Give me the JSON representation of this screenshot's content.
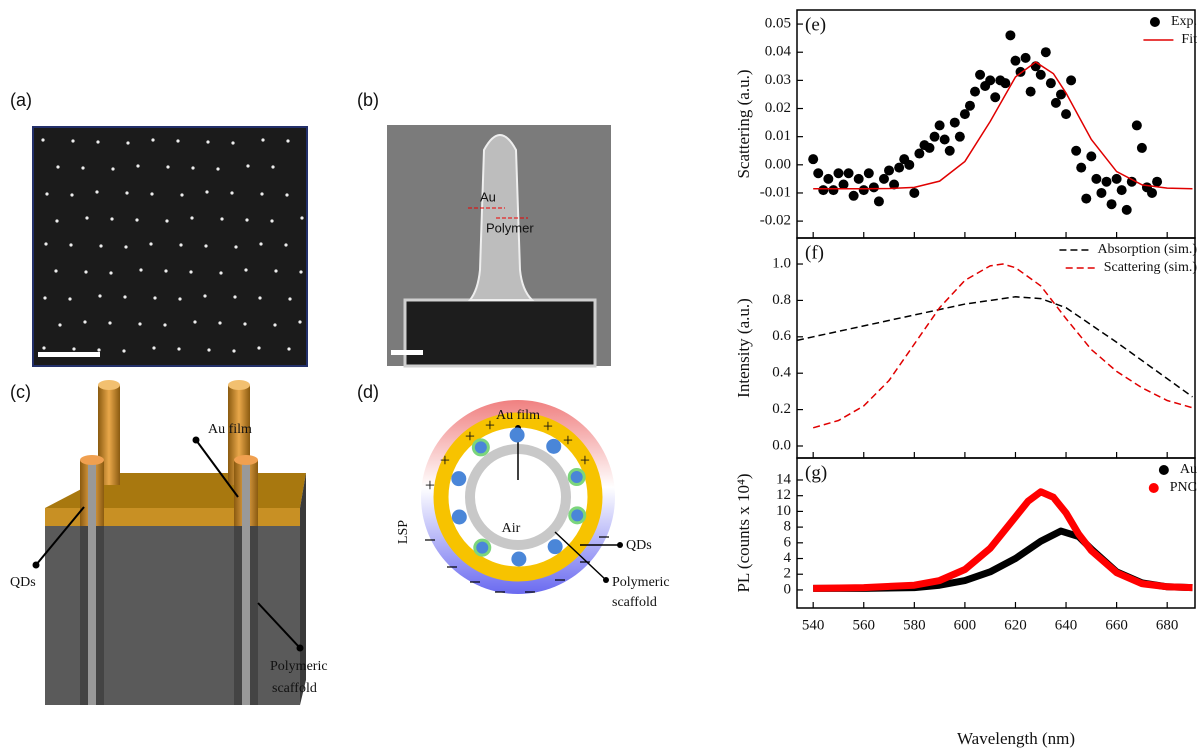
{
  "panels": {
    "a": {
      "label": "(a)"
    },
    "b": {
      "label": "(b)",
      "au": "Au",
      "polymer": "Polymer"
    },
    "c": {
      "label": "(c)",
      "au_film": "Au film",
      "qds": "QDs",
      "scaffold": [
        "Polymeric",
        "scaffold"
      ]
    },
    "d": {
      "label": "(d)",
      "au_film": "Au film",
      "air": "Air",
      "qds": "QDs",
      "scaffold": [
        "Polymeric",
        "scaffold"
      ],
      "lsp": "LSP"
    }
  },
  "chart_data": [
    {
      "type": "scatter",
      "panel_label": "(e)",
      "ylabel": "Scattering (a.u.)",
      "xlim": [
        533.6,
        691
      ],
      "xticks": [
        540,
        560,
        580,
        600,
        620,
        640,
        660,
        680
      ],
      "ylim": [
        -0.026,
        0.055
      ],
      "yticks": [
        {
          "value": -0.02,
          "label": "-0.02"
        },
        {
          "value": -0.01,
          "label": "-0.01"
        },
        {
          "value": 0,
          "label": "0.00"
        },
        0.01,
        0.02,
        0.03,
        0.04,
        0.05
      ],
      "legend": "upper right",
      "series": [
        {
          "name": "Exp.",
          "color": "#000000",
          "style": "dots",
          "x": [
            540,
            542,
            544,
            546,
            548,
            550,
            552,
            554,
            556,
            558,
            560,
            562,
            564,
            566,
            568,
            570,
            572,
            574,
            576,
            578,
            580,
            582,
            584,
            586,
            588,
            590,
            592,
            594,
            596,
            598,
            600,
            602,
            604,
            606,
            608,
            610,
            612,
            614,
            616,
            618,
            620,
            622,
            624,
            626,
            628,
            630,
            632,
            634,
            636,
            638,
            640,
            642,
            644,
            646,
            648,
            650,
            652,
            654,
            656,
            658,
            660,
            662,
            664,
            666,
            668,
            670,
            672,
            674,
            676
          ],
          "values": [
            0.002,
            -0.003,
            -0.009,
            -0.005,
            -0.009,
            -0.003,
            -0.007,
            -0.003,
            -0.011,
            -0.005,
            -0.009,
            -0.003,
            -0.008,
            -0.013,
            -0.005,
            -0.002,
            -0.007,
            -0.001,
            0.002,
            0.0,
            -0.01,
            0.004,
            0.007,
            0.006,
            0.01,
            0.014,
            0.009,
            0.005,
            0.015,
            0.01,
            0.018,
            0.021,
            0.026,
            0.032,
            0.028,
            0.03,
            0.024,
            0.03,
            0.029,
            0.046,
            0.037,
            0.033,
            0.038,
            0.026,
            0.035,
            0.032,
            0.04,
            0.029,
            0.022,
            0.025,
            0.018,
            0.03,
            0.005,
            -0.001,
            -0.012,
            0.003,
            -0.005,
            -0.01,
            -0.006,
            -0.014,
            -0.005,
            -0.009,
            -0.016,
            -0.006,
            0.014,
            0.006,
            -0.008,
            -0.01,
            -0.006
          ]
        },
        {
          "name": "Fit",
          "color": "#e00000",
          "style": "line",
          "x": [
            540,
            550,
            560,
            570,
            580,
            590,
            600,
            610,
            620,
            628,
            635,
            640,
            650,
            660,
            670,
            680,
            690
          ],
          "values": [
            -0.0085,
            -0.0085,
            -0.0085,
            -0.0084,
            -0.008,
            -0.0058,
            0.0012,
            0.0154,
            0.0312,
            0.0365,
            0.0324,
            0.0255,
            0.009,
            -0.0024,
            -0.0071,
            -0.0083,
            -0.0085
          ]
        }
      ]
    },
    {
      "type": "line",
      "panel_label": "(f)",
      "ylabel": "Intensity (a.u.)",
      "xlim": [
        533.6,
        691
      ],
      "xticks": [
        540,
        560,
        580,
        600,
        620,
        640,
        660,
        680
      ],
      "ylim": [
        -0.066,
        1.143
      ],
      "yticks": [
        {
          "value": 0,
          "label": "0.0"
        },
        0.2,
        0.4,
        0.6,
        0.8,
        {
          "value": 1,
          "label": "1.0"
        }
      ],
      "legend": "upper right",
      "series": [
        {
          "name": "Absorption (sim.)",
          "color": "#000000",
          "style": "dashed",
          "x": [
            533.6,
            540,
            560,
            580,
            600,
            620,
            630,
            640,
            660,
            680,
            690
          ],
          "values": [
            0.58,
            0.6,
            0.66,
            0.72,
            0.78,
            0.82,
            0.81,
            0.76,
            0.57,
            0.37,
            0.27
          ]
        },
        {
          "name": "Scattering (sim.)",
          "color": "#e00000",
          "style": "dashed",
          "x": [
            540,
            550,
            560,
            570,
            580,
            590,
            600,
            610,
            615,
            620,
            630,
            640,
            650,
            660,
            670,
            680,
            690
          ],
          "values": [
            0.1,
            0.14,
            0.22,
            0.36,
            0.56,
            0.76,
            0.91,
            0.99,
            1.0,
            0.98,
            0.88,
            0.7,
            0.53,
            0.41,
            0.32,
            0.25,
            0.21
          ]
        }
      ]
    },
    {
      "type": "line",
      "panel_label": "(g)",
      "ylabel": "PL (counts x 10⁴)",
      "xlabel": "Wavelength (nm)",
      "xlim": [
        533.6,
        691
      ],
      "xticks": [
        540,
        560,
        580,
        600,
        620,
        640,
        660,
        680
      ],
      "ylim": [
        -2.3,
        16.8
      ],
      "yticks": [
        0,
        2,
        4,
        6,
        8,
        10,
        12,
        14
      ],
      "legend": "upper right",
      "series": [
        {
          "name": "Au",
          "color": "#000000",
          "style": "thick",
          "x": [
            540,
            560,
            580,
            590,
            600,
            610,
            620,
            630,
            638,
            645,
            650,
            660,
            670,
            680,
            690
          ],
          "values": [
            0.2,
            0.2,
            0.3,
            0.6,
            1.2,
            2.3,
            4.0,
            6.2,
            7.5,
            6.8,
            5.2,
            2.3,
            0.9,
            0.4,
            0.3
          ]
        },
        {
          "name": "PNC",
          "color": "#ff0000",
          "style": "thick",
          "x": [
            540,
            560,
            580,
            590,
            600,
            610,
            620,
            625,
            630,
            635,
            640,
            645,
            650,
            660,
            670,
            680,
            690
          ],
          "values": [
            0.2,
            0.3,
            0.6,
            1.2,
            2.6,
            5.3,
            9.3,
            11.3,
            12.5,
            11.8,
            9.8,
            7.1,
            5.0,
            2.2,
            0.8,
            0.4,
            0.3
          ]
        }
      ]
    }
  ]
}
